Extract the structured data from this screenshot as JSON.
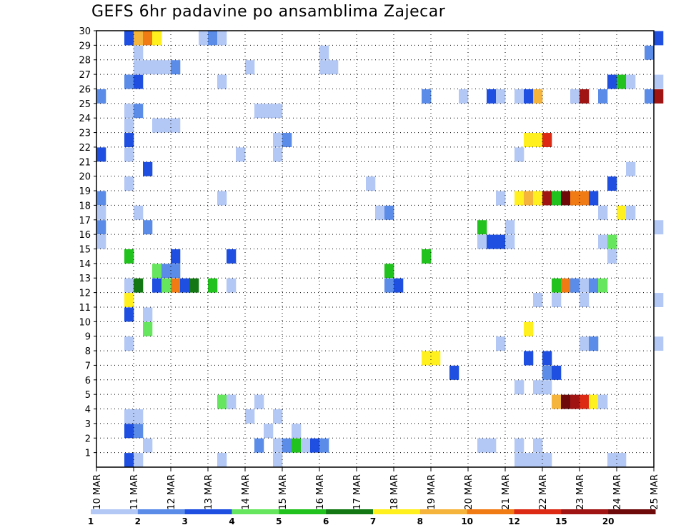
{
  "title": "GEFS 6hr padavine po ansamblima Zajecar",
  "chart_data": {
    "type": "heatmap",
    "title": "GEFS 6hr padavine po ansamblima Zajecar",
    "x_tick_labels": [
      "10 MAR",
      "11 MAR",
      "12 MAR",
      "13 MAR",
      "14 MAR",
      "15 MAR",
      "16 MAR",
      "17 MAR",
      "18 MAR",
      "19 MAR",
      "20 MAR",
      "21 MAR",
      "22 MAR",
      "23 MAR",
      "24 MAR",
      "25 MAR"
    ],
    "y_tick_labels": [
      "1",
      "2",
      "3",
      "4",
      "5",
      "6",
      "7",
      "8",
      "9",
      "10",
      "11",
      "12",
      "13",
      "14",
      "15",
      "16",
      "17",
      "18",
      "19",
      "20",
      "21",
      "22",
      "23",
      "24",
      "25",
      "26",
      "27",
      "28",
      "29",
      "30"
    ],
    "ylim": [
      0,
      30
    ],
    "grid": true,
    "steps_per_day": 4,
    "legend": {
      "position": "bottom",
      "thresholds": [
        "1",
        "2",
        "3",
        "4",
        "5",
        "6",
        "7",
        "8",
        "10",
        "12",
        "15",
        "20"
      ],
      "colors": [
        "#b3c8f5",
        "#5b8ce8",
        "#1e4fe0",
        "#66e65e",
        "#22c21e",
        "#137813",
        "#fff01e",
        "#f5b43c",
        "#f07a14",
        "#dc2a14",
        "#a01414",
        "#6e0a0a"
      ]
    },
    "cells": [
      [
        0,
        25,
        2
      ],
      [
        0,
        21,
        3
      ],
      [
        0,
        18,
        2
      ],
      [
        0,
        17,
        1
      ],
      [
        0,
        16,
        2
      ],
      [
        0,
        15,
        1
      ],
      [
        3,
        29,
        3
      ],
      [
        3,
        26,
        2
      ],
      [
        3,
        24,
        1
      ],
      [
        3,
        23,
        1
      ],
      [
        3,
        22,
        3
      ],
      [
        3,
        21,
        1
      ],
      [
        3,
        19,
        1
      ],
      [
        3,
        14,
        5
      ],
      [
        3,
        12,
        1
      ],
      [
        3,
        11,
        7
      ],
      [
        3,
        10,
        3
      ],
      [
        3,
        8,
        1
      ],
      [
        3,
        3,
        1
      ],
      [
        3,
        2,
        3
      ],
      [
        3,
        0,
        3
      ],
      [
        4,
        29,
        8
      ],
      [
        4,
        28,
        1
      ],
      [
        4,
        27,
        1
      ],
      [
        4,
        26,
        3
      ],
      [
        4,
        24,
        2
      ],
      [
        4,
        17,
        1
      ],
      [
        4,
        12,
        6
      ],
      [
        4,
        3,
        1
      ],
      [
        4,
        2,
        2
      ],
      [
        4,
        0,
        1
      ],
      [
        5,
        29,
        9
      ],
      [
        5,
        27,
        1
      ],
      [
        5,
        20,
        3
      ],
      [
        5,
        16,
        2
      ],
      [
        5,
        10,
        1
      ],
      [
        5,
        9,
        4
      ],
      [
        5,
        1,
        1
      ],
      [
        6,
        29,
        7
      ],
      [
        6,
        27,
        1
      ],
      [
        6,
        23,
        1
      ],
      [
        6,
        13,
        4
      ],
      [
        6,
        12,
        3
      ],
      [
        7,
        27,
        1
      ],
      [
        7,
        23,
        1
      ],
      [
        7,
        13,
        2
      ],
      [
        7,
        12,
        4
      ],
      [
        8,
        27,
        2
      ],
      [
        8,
        23,
        1
      ],
      [
        8,
        14,
        3
      ],
      [
        8,
        13,
        2
      ],
      [
        8,
        12,
        9
      ],
      [
        9,
        12,
        3
      ],
      [
        10,
        12,
        6
      ],
      [
        11,
        29,
        1
      ],
      [
        12,
        29,
        2
      ],
      [
        12,
        12,
        5
      ],
      [
        13,
        29,
        1
      ],
      [
        13,
        26,
        1
      ],
      [
        13,
        18,
        1
      ],
      [
        13,
        4,
        4
      ],
      [
        13,
        0,
        1
      ],
      [
        14,
        14,
        3
      ],
      [
        14,
        12,
        1
      ],
      [
        14,
        4,
        1
      ],
      [
        15,
        21,
        1
      ],
      [
        16,
        27,
        1
      ],
      [
        16,
        3,
        1
      ],
      [
        17,
        24,
        1
      ],
      [
        17,
        4,
        1
      ],
      [
        17,
        1,
        2
      ],
      [
        18,
        24,
        1
      ],
      [
        18,
        2,
        1
      ],
      [
        19,
        24,
        1
      ],
      [
        19,
        3,
        1
      ],
      [
        19,
        21,
        1
      ],
      [
        19,
        22,
        1
      ],
      [
        19,
        1,
        1
      ],
      [
        19,
        0,
        1
      ],
      [
        20,
        22,
        2
      ],
      [
        20,
        1,
        2
      ],
      [
        21,
        2,
        1
      ],
      [
        21,
        1,
        5
      ],
      [
        22,
        1,
        1
      ],
      [
        23,
        1,
        3
      ],
      [
        24,
        28,
        1
      ],
      [
        24,
        27,
        1
      ],
      [
        24,
        1,
        2
      ],
      [
        25,
        27,
        1
      ],
      [
        29,
        19,
        1
      ],
      [
        30,
        17,
        1
      ],
      [
        31,
        17,
        2
      ],
      [
        31,
        13,
        5
      ],
      [
        31,
        12,
        2
      ],
      [
        32,
        12,
        3
      ],
      [
        35,
        25,
        2
      ],
      [
        35,
        7,
        7
      ],
      [
        35,
        14,
        5
      ],
      [
        36,
        7,
        7
      ],
      [
        38,
        6,
        3
      ],
      [
        39,
        25,
        1
      ],
      [
        41,
        16,
        5
      ],
      [
        41,
        15,
        1
      ],
      [
        41,
        1,
        1
      ],
      [
        42,
        25,
        3
      ],
      [
        42,
        15,
        3
      ],
      [
        42,
        1,
        1
      ],
      [
        43,
        15,
        3
      ],
      [
        43,
        18,
        1
      ],
      [
        43,
        25,
        1
      ],
      [
        43,
        8,
        1
      ],
      [
        44,
        15,
        1
      ],
      [
        44,
        16,
        1
      ],
      [
        45,
        25,
        1
      ],
      [
        45,
        18,
        7
      ],
      [
        45,
        21,
        1
      ],
      [
        45,
        5,
        1
      ],
      [
        45,
        1,
        1
      ],
      [
        45,
        0,
        1
      ],
      [
        46,
        25,
        3
      ],
      [
        46,
        18,
        8
      ],
      [
        46,
        22,
        7
      ],
      [
        46,
        9,
        7
      ],
      [
        46,
        7,
        3
      ],
      [
        46,
        0,
        1
      ],
      [
        47,
        25,
        8
      ],
      [
        47,
        18,
        7
      ],
      [
        47,
        22,
        7
      ],
      [
        47,
        5,
        1
      ],
      [
        47,
        1,
        1
      ],
      [
        47,
        0,
        1
      ],
      [
        47,
        11,
        1
      ],
      [
        48,
        18,
        11
      ],
      [
        48,
        22,
        10
      ],
      [
        48,
        5,
        1
      ],
      [
        48,
        7,
        3
      ],
      [
        48,
        6,
        2
      ],
      [
        48,
        0,
        1
      ],
      [
        49,
        18,
        5
      ],
      [
        49,
        12,
        5
      ],
      [
        49,
        6,
        3
      ],
      [
        49,
        4,
        8
      ],
      [
        49,
        11,
        1
      ],
      [
        50,
        18,
        12
      ],
      [
        50,
        12,
        9
      ],
      [
        50,
        4,
        12
      ],
      [
        51,
        18,
        9
      ],
      [
        51,
        25,
        1
      ],
      [
        51,
        12,
        2
      ],
      [
        51,
        4,
        11
      ],
      [
        52,
        18,
        9
      ],
      [
        52,
        25,
        11
      ],
      [
        52,
        8,
        1
      ],
      [
        52,
        12,
        1
      ],
      [
        52,
        4,
        10
      ],
      [
        52,
        11,
        1
      ],
      [
        53,
        18,
        3
      ],
      [
        53,
        8,
        2
      ],
      [
        53,
        12,
        2
      ],
      [
        53,
        4,
        7
      ],
      [
        54,
        25,
        2
      ],
      [
        54,
        17,
        1
      ],
      [
        54,
        15,
        1
      ],
      [
        54,
        12,
        4
      ],
      [
        54,
        4,
        1
      ],
      [
        55,
        26,
        3
      ],
      [
        55,
        19,
        3
      ],
      [
        55,
        14,
        1
      ],
      [
        55,
        15,
        4
      ],
      [
        55,
        0,
        1
      ],
      [
        56,
        26,
        5
      ],
      [
        56,
        17,
        7
      ],
      [
        56,
        0,
        1
      ],
      [
        57,
        26,
        1
      ],
      [
        57,
        20,
        1
      ],
      [
        57,
        17,
        1
      ],
      [
        59,
        28,
        2
      ],
      [
        59,
        25,
        2
      ],
      [
        60,
        29,
        3
      ],
      [
        60,
        25,
        11
      ],
      [
        60,
        26,
        1
      ],
      [
        60,
        16,
        1
      ],
      [
        60,
        11,
        1
      ],
      [
        60,
        8,
        1
      ]
    ]
  }
}
